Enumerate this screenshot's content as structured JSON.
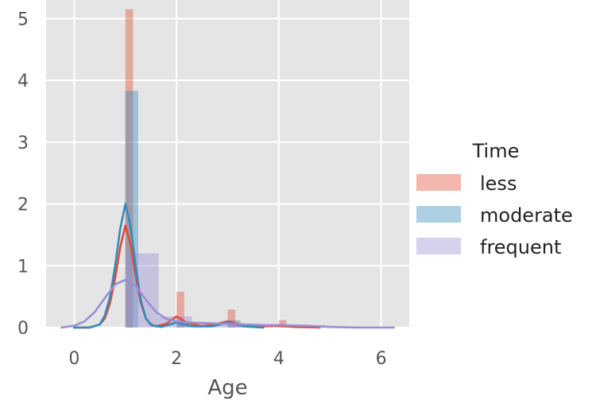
{
  "chart_data": {
    "type": "histogram_kde",
    "title": "",
    "xlabel": "Age",
    "ylabel": "",
    "xlim": [
      -0.55,
      6.55
    ],
    "ylim": [
      0,
      5.3
    ],
    "xticks": [
      0,
      2,
      4,
      6
    ],
    "yticks": [
      0,
      1,
      2,
      3,
      4,
      5
    ],
    "grid": true,
    "background": "#e5e5e5",
    "legend": {
      "title": "Time",
      "placement": "right"
    },
    "series": [
      {
        "name": "less",
        "color": "#e24a33",
        "bar_alpha": 0.4,
        "bins": [
          {
            "x0": 1.0,
            "x1": 1.15,
            "height": 5.15
          },
          {
            "x0": 2.0,
            "x1": 2.15,
            "height": 0.58
          },
          {
            "x0": 3.0,
            "x1": 3.15,
            "height": 0.29
          },
          {
            "x0": 4.0,
            "x1": 4.15,
            "height": 0.12
          }
        ],
        "kde": [
          [
            0.0,
            0.0
          ],
          [
            0.3,
            0.0
          ],
          [
            0.5,
            0.05
          ],
          [
            0.6,
            0.15
          ],
          [
            0.7,
            0.4
          ],
          [
            0.8,
            0.8
          ],
          [
            0.9,
            1.3
          ],
          [
            1.0,
            1.65
          ],
          [
            1.1,
            1.35
          ],
          [
            1.2,
            0.85
          ],
          [
            1.3,
            0.4
          ],
          [
            1.4,
            0.15
          ],
          [
            1.5,
            0.05
          ],
          [
            1.6,
            0.02
          ],
          [
            1.8,
            0.06
          ],
          [
            2.0,
            0.18
          ],
          [
            2.2,
            0.08
          ],
          [
            2.5,
            0.02
          ],
          [
            2.8,
            0.06
          ],
          [
            3.0,
            0.1
          ],
          [
            3.2,
            0.06
          ],
          [
            3.5,
            0.02
          ],
          [
            4.0,
            0.03
          ],
          [
            4.3,
            0.01
          ],
          [
            4.8,
            0.0
          ]
        ]
      },
      {
        "name": "moderate",
        "color": "#348abd",
        "bar_alpha": 0.4,
        "bins": [
          {
            "x0": 1.0,
            "x1": 1.25,
            "height": 3.83
          },
          {
            "x0": 2.0,
            "x1": 2.25,
            "height": 0.1
          },
          {
            "x0": 3.0,
            "x1": 3.25,
            "height": 0.12
          }
        ],
        "kde": [
          [
            0.0,
            0.0
          ],
          [
            0.3,
            0.0
          ],
          [
            0.5,
            0.05
          ],
          [
            0.6,
            0.2
          ],
          [
            0.7,
            0.5
          ],
          [
            0.8,
            1.0
          ],
          [
            0.9,
            1.6
          ],
          [
            1.0,
            2.0
          ],
          [
            1.1,
            1.65
          ],
          [
            1.2,
            1.0
          ],
          [
            1.3,
            0.45
          ],
          [
            1.4,
            0.15
          ],
          [
            1.5,
            0.04
          ],
          [
            1.7,
            0.01
          ],
          [
            2.0,
            0.08
          ],
          [
            2.3,
            0.02
          ],
          [
            2.7,
            0.02
          ],
          [
            3.0,
            0.08
          ],
          [
            3.3,
            0.02
          ],
          [
            3.7,
            0.0
          ]
        ]
      },
      {
        "name": "frequent",
        "color": "#988ed5",
        "bar_alpha": 0.4,
        "bins": [
          {
            "x0": 1.0,
            "x1": 1.65,
            "height": 1.2
          },
          {
            "x0": 1.65,
            "x1": 2.3,
            "height": 0.18
          },
          {
            "x0": 2.3,
            "x1": 2.95,
            "height": 0.07
          },
          {
            "x0": 2.95,
            "x1": 3.6,
            "height": 0.05
          },
          {
            "x0": 3.6,
            "x1": 4.25,
            "height": 0.05
          },
          {
            "x0": 4.25,
            "x1": 4.9,
            "height": 0.04
          }
        ],
        "kde": [
          [
            -0.25,
            0.0
          ],
          [
            0.0,
            0.03
          ],
          [
            0.2,
            0.1
          ],
          [
            0.4,
            0.25
          ],
          [
            0.6,
            0.48
          ],
          [
            0.8,
            0.7
          ],
          [
            1.0,
            0.77
          ],
          [
            1.2,
            0.68
          ],
          [
            1.4,
            0.45
          ],
          [
            1.6,
            0.25
          ],
          [
            1.8,
            0.14
          ],
          [
            2.0,
            0.1
          ],
          [
            2.3,
            0.08
          ],
          [
            2.6,
            0.07
          ],
          [
            3.0,
            0.06
          ],
          [
            3.3,
            0.05
          ],
          [
            3.7,
            0.04
          ],
          [
            4.0,
            0.04
          ],
          [
            4.5,
            0.03
          ],
          [
            5.0,
            0.01
          ],
          [
            5.5,
            0.0
          ],
          [
            6.25,
            0.0
          ]
        ]
      }
    ]
  }
}
